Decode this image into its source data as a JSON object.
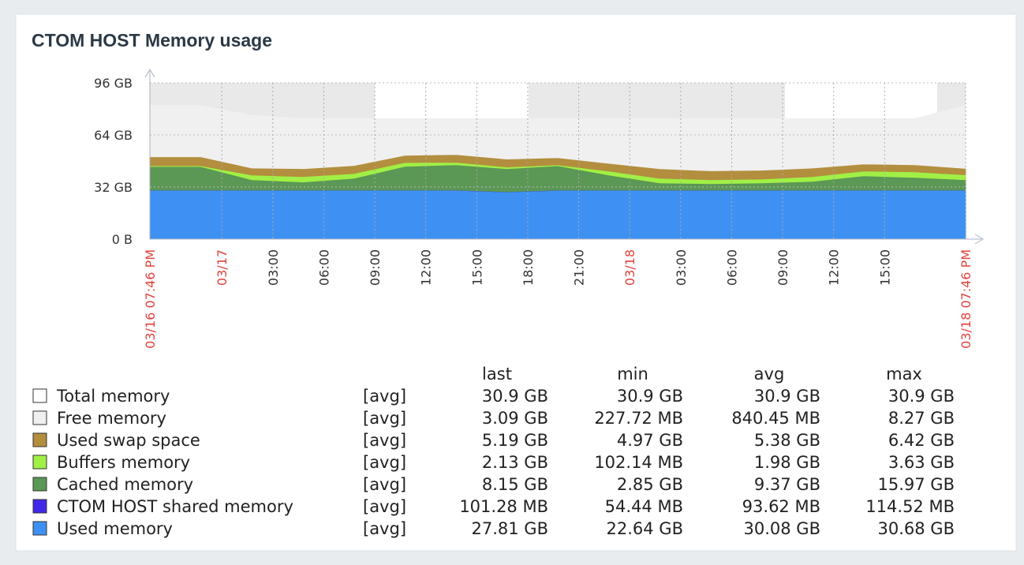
{
  "chart_data": {
    "type": "stacked-area",
    "title": "CTOM HOST Memory usage",
    "x": [
      0,
      3,
      6,
      9,
      12,
      15,
      18,
      21,
      24,
      27,
      30,
      33,
      36,
      39,
      42,
      45,
      48
    ],
    "xlim": [
      0,
      48
    ],
    "xticks": [
      {
        "value": 0,
        "label": "03/16 07:46 PM"
      },
      {
        "value": 4.233,
        "label": "03/17"
      },
      {
        "value": 7.233,
        "label": "03:00"
      },
      {
        "value": 10.233,
        "label": "06:00"
      },
      {
        "value": 13.233,
        "label": "09:00"
      },
      {
        "value": 16.233,
        "label": "12:00"
      },
      {
        "value": 19.233,
        "label": "15:00"
      },
      {
        "value": 22.233,
        "label": "18:00"
      },
      {
        "value": 25.233,
        "label": "21:00"
      },
      {
        "value": 28.233,
        "label": "03/18"
      },
      {
        "value": 31.233,
        "label": "03:00"
      },
      {
        "value": 34.233,
        "label": "06:00"
      },
      {
        "value": 37.233,
        "label": "09:00"
      },
      {
        "value": 40.233,
        "label": "12:00"
      },
      {
        "value": 43.233,
        "label": "15:00"
      },
      {
        "value": 48,
        "label": "03/18 07:46 PM"
      }
    ],
    "ylim": [
      0,
      96
    ],
    "yticks": [
      {
        "value": 0,
        "label": "0 B"
      },
      {
        "value": 32,
        "label": "32 GB"
      },
      {
        "value": 64,
        "label": "64 GB"
      },
      {
        "value": 96,
        "label": "96 GB"
      }
    ],
    "grid": true,
    "tick_color": "#333333",
    "date_tick_color": "#e0453f",
    "legend_columns": [
      "last",
      "min",
      "avg",
      "max"
    ],
    "series": [
      {
        "name": "Total memory",
        "color": "#ffffff",
        "func": "[avg]",
        "stats": [
          "30.9 GB",
          "30.9 GB",
          "30.9 GB",
          "30.9 GB"
        ]
      },
      {
        "name": "Free memory",
        "color": "#f0f0f0",
        "func": "[avg]",
        "stats": [
          "3.09 GB",
          "227.72 MB",
          "840.45 MB",
          "8.27 GB"
        ],
        "values": [
          31.4,
          31.4,
          32.3,
          30.7,
          28.8,
          22.5,
          22,
          24.8,
          23.9,
          27.4,
          30.7,
          32,
          31.6,
          30.3,
          27.8,
          28.3,
          38.5
        ]
      },
      {
        "name": "Used swap space",
        "color": "#b38e3e",
        "func": "[avg]",
        "stats": [
          "5.19 GB",
          "4.97 GB",
          "5.38 GB",
          "6.42 GB"
        ],
        "values": [
          5.5,
          5.5,
          4.3,
          4.9,
          4.9,
          4.4,
          4.8,
          4.9,
          4.5,
          4.8,
          5.9,
          5.5,
          5.5,
          5.3,
          4.4,
          4.4,
          4
        ]
      },
      {
        "name": "Buffers memory",
        "color": "#a0f046",
        "func": "[avg]",
        "stats": [
          "2.13 GB",
          "102.14 MB",
          "1.98 GB",
          "3.63 GB"
        ],
        "values": [
          0.5,
          0.5,
          2.9,
          3.3,
          2.9,
          2.4,
          1.5,
          1,
          0.5,
          2.4,
          2.9,
          2.4,
          2.4,
          2.9,
          2.9,
          3.4,
          3
        ]
      },
      {
        "name": "Cached memory",
        "color": "#5b9755",
        "func": "[avg]",
        "stats": [
          "8.15 GB",
          "2.85 GB",
          "9.37 GB",
          "15.97 GB"
        ],
        "values": [
          14.5,
          14.5,
          6.4,
          5,
          7.3,
          14.6,
          15.6,
          14.2,
          15,
          9.3,
          4.4,
          4,
          4.4,
          5.4,
          8.8,
          7.8,
          6.4
        ]
      },
      {
        "name": "CTOM HOST shared memory",
        "color": "#4027e6",
        "func": "[avg]",
        "stats": [
          "101.28 MB",
          "54.44 MB",
          "93.62 MB",
          "114.52 MB"
        ],
        "values": [
          0.1,
          0.1,
          0.1,
          0.1,
          0.1,
          0.1,
          0.1,
          0.1,
          0.1,
          0.1,
          0.1,
          0.1,
          0.1,
          0.1,
          0.1,
          0.1,
          0.1
        ]
      },
      {
        "name": "Used memory",
        "color": "#3e91f2",
        "func": "[avg]",
        "stats": [
          "27.81 GB",
          "22.64 GB",
          "30.08 GB",
          "30.68 GB"
        ],
        "values": [
          30,
          30,
          30,
          30,
          30,
          30,
          30,
          29,
          30,
          30,
          30,
          30,
          30,
          30,
          30,
          30,
          30
        ]
      }
    ]
  }
}
